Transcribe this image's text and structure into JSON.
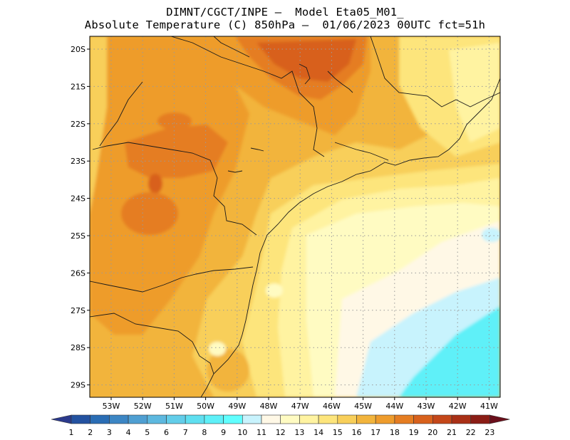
{
  "header": {
    "line1": "DIMNT/CGCT/INPE –  Model Eta05_M01_",
    "line2": "Absolute Temperature (C) 850hPa –  01/06/2023 00UTC fct=51h"
  },
  "map": {
    "lat_labels": [
      "20S",
      "21S",
      "22S",
      "23S",
      "24S",
      "25S",
      "26S",
      "27S",
      "28S",
      "29S"
    ],
    "lon_labels": [
      "53W",
      "52W",
      "51W",
      "50W",
      "49W",
      "48W",
      "47W",
      "46W",
      "45W",
      "44W",
      "43W",
      "42W",
      "41W"
    ]
  },
  "colorbar": {
    "labels": [
      "1",
      "2",
      "3",
      "4",
      "5",
      "6",
      "7",
      "8",
      "9",
      "10",
      "11",
      "12",
      "13",
      "14",
      "15",
      "16",
      "17",
      "18",
      "19",
      "20",
      "21",
      "22",
      "23"
    ],
    "colors": [
      "#2b3a8c",
      "#2352a0",
      "#2a6db4",
      "#3c86c4",
      "#4f9fd2",
      "#5db8df",
      "#62cde9",
      "#5fdff0",
      "#5ef0f8",
      "#60ffff",
      "#c8f3fd",
      "#fff8e6",
      "#fffbc2",
      "#fff3a1",
      "#fde57c",
      "#f8cf5a",
      "#f2b43c",
      "#ee9c2c",
      "#e57d22",
      "#d8611c",
      "#c44719",
      "#a93016",
      "#8a1d15",
      "#6a0f1b"
    ]
  },
  "palette": {
    "cyan": "#5ef0f8",
    "lightcyan": "#c8f3fd",
    "cream": "#fff8e6",
    "paleyellow": "#fffbc2",
    "yellow": "#fff3a1",
    "gold1": "#fde57c",
    "gold2": "#f8cf5a",
    "orange1": "#f2b43c",
    "orange2": "#ee9c2c",
    "orange3": "#e57d22",
    "darkorange": "#d8611c"
  }
}
